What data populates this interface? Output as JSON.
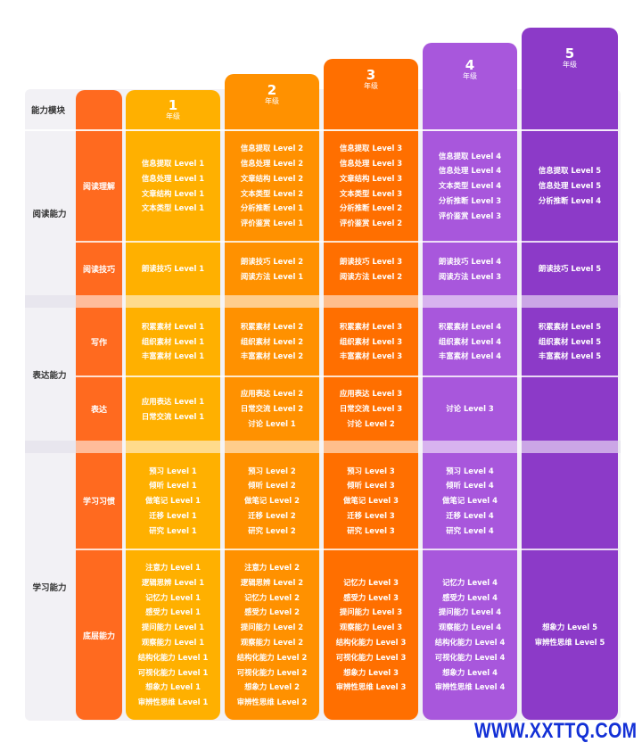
{
  "header": {
    "corner_label": "能力模块",
    "grades": [
      {
        "num": "1",
        "label": "年级"
      },
      {
        "num": "2",
        "label": "年级"
      },
      {
        "num": "3",
        "label": "年级"
      },
      {
        "num": "4",
        "label": "年级"
      },
      {
        "num": "5",
        "label": "年级"
      }
    ]
  },
  "groups": [
    {
      "name": "阅读能力"
    },
    {
      "name": "表达能力"
    },
    {
      "name": "学习能力"
    }
  ],
  "subs": [
    "阅读理解",
    "阅读技巧",
    "写作",
    "表达",
    "学习习惯",
    "底层能力"
  ],
  "cells": [
    [
      [
        "信息提取 Level 1",
        "信息处理 Level 1",
        "文章结构 Level 1",
        "文本类型 Level 1"
      ],
      [
        "信息提取 Level 2",
        "信息处理 Level 2",
        "文章结构 Level 2",
        "文本类型 Level 2",
        "分析推断 Level 1",
        "评价鉴赏 Level 1"
      ],
      [
        "信息提取 Level 3",
        "信息处理 Level 3",
        "文章结构 Level 3",
        "文本类型 Level 3",
        "分析推断 Level 2",
        "评价鉴赏 Level 2"
      ],
      [
        "信息提取 Level 4",
        "信息处理 Level 4",
        "文本类型 Level 4",
        "分析推断 Level 3",
        "评价鉴赏 Level 3"
      ],
      [
        "信息提取 Level 5",
        "信息处理 Level 5",
        "分析推断 Level 4"
      ]
    ],
    [
      [
        "朗读技巧 Level 1"
      ],
      [
        "朗读技巧 Level 2",
        "阅读方法 Level 1"
      ],
      [
        "朗读技巧 Level 3",
        "阅读方法 Level 2"
      ],
      [
        "朗读技巧 Level 4",
        "阅读方法 Level 3"
      ],
      [
        "朗读技巧 Level 5"
      ]
    ],
    [
      [
        "积累素材 Level 1",
        "组织素材 Level 1",
        "丰富素材 Level 1"
      ],
      [
        "积累素材 Level 2",
        "组织素材 Level 2",
        "丰富素材 Level 2"
      ],
      [
        "积累素材 Level 3",
        "组织素材 Level 3",
        "丰富素材 Level 3"
      ],
      [
        "积累素材 Level 4",
        "组织素材 Level 4",
        "丰富素材 Level 4"
      ],
      [
        "积累素材 Level 5",
        "组织素材 Level 5",
        "丰富素材 Level 5"
      ]
    ],
    [
      [
        "应用表达 Level 1",
        "日常交流 Level 1"
      ],
      [
        "应用表达 Level 2",
        "日常交流 Level 2",
        "讨论 Level 1"
      ],
      [
        "应用表达 Level 3",
        "日常交流 Level 3",
        "讨论 Level 2"
      ],
      [
        "讨论 Level 3"
      ],
      []
    ],
    [
      [
        "预习 Level 1",
        "倾听 Level 1",
        "做笔记 Level 1",
        "迁移 Level 1",
        "研究 Level 1"
      ],
      [
        "预习 Level 2",
        "倾听 Level 2",
        "做笔记 Level 2",
        "迁移 Level 2",
        "研究 Level 2"
      ],
      [
        "预习 Level 3",
        "倾听 Level 3",
        "做笔记 Level 3",
        "迁移 Level 3",
        "研究 Level 3"
      ],
      [
        "预习 Level 4",
        "倾听 Level 4",
        "做笔记 Level 4",
        "迁移 Level 4",
        "研究 Level 4"
      ],
      []
    ],
    [
      [
        "注意力 Level 1",
        "逻辑思辨 Level 1",
        "记忆力 Level 1",
        "感受力 Level 1",
        "提问能力 Level 1",
        "观察能力 Level 1",
        "结构化能力 Level 1",
        "可视化能力 Level 1",
        "想象力 Level 1",
        "审辨性思维 Level 1"
      ],
      [
        "注意力 Level 2",
        "逻辑思辨 Level 2",
        "记忆力 Level 2",
        "感受力 Level 2",
        "提问能力 Level 2",
        "观察能力 Level 2",
        "结构化能力 Level 2",
        "可视化能力 Level 2",
        "想象力 Level 2",
        "审辨性思维 Level 2"
      ],
      [
        "记忆力 Level 3",
        "感受力 Level 3",
        "提问能力 Level 3",
        "观察能力 Level 3",
        "结构化能力 Level 3",
        "可视化能力 Level 3",
        "想象力 Level 3",
        "审辨性思维 Level 3"
      ],
      [
        "记忆力 Level 4",
        "感受力 Level 4",
        "提问能力 Level 4",
        "观察能力 Level 4",
        "结构化能力 Level 4",
        "可视化能力 Level 4",
        "想象力 Level 4",
        "审辨性思维 Level 4"
      ],
      [
        "想象力 Level 5",
        "审辨性思维 Level 5"
      ]
    ]
  ],
  "watermark": "WWW.XXTTQ.COM"
}
